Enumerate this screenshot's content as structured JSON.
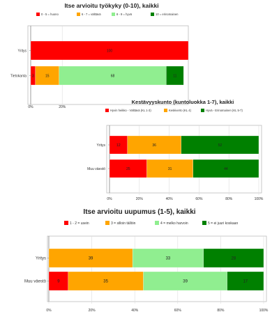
{
  "chart_data": [
    {
      "type": "bar",
      "orientation": "horizontal",
      "stacked": true,
      "title": "Itse arvioitu työkyky (0-10), kaikki",
      "categories": [
        "Yritys",
        "Tietokanta"
      ],
      "series": [
        {
          "name": "0 - 5 = huono",
          "color": "#ff0000",
          "values": [
            100,
            3
          ]
        },
        {
          "name": "6 - 7 = välttävä",
          "color": "#ffa500",
          "values": [
            0,
            15
          ]
        },
        {
          "name": "8 - 9 = hyvä",
          "color": "#90ee90",
          "values": [
            0,
            68
          ]
        },
        {
          "name": "10 = erinomainen",
          "color": "#008000",
          "values": [
            0,
            11
          ]
        }
      ],
      "data_labels": [
        [
          "100",
          "",
          "",
          ""
        ],
        [
          "3",
          "15",
          "68",
          "11"
        ]
      ],
      "x_ticks": [
        "0%",
        "20%"
      ],
      "xlim": [
        0,
        100
      ],
      "legend": "top"
    },
    {
      "type": "bar",
      "orientation": "horizontal",
      "stacked": true,
      "title": "Kestävyyskunto (kuntoluokka 1-7), kaikki",
      "categories": [
        "Yritys",
        "Muu väestö"
      ],
      "series": [
        {
          "name": "Hyvin heikko - Välttävä (KL 1-3)",
          "color": "#ff0000",
          "values": [
            12,
            25
          ]
        },
        {
          "name": "Keskiverto (KL 4)",
          "color": "#ffa500",
          "values": [
            36,
            31
          ]
        },
        {
          "name": "Hyvä - Erinomainen (KL 5-7)",
          "color": "#008000",
          "values": [
            52,
            44
          ]
        }
      ],
      "data_labels": [
        [
          "12",
          "36",
          "52"
        ],
        [
          "25",
          "31",
          "44"
        ]
      ],
      "x_ticks": [
        "0%",
        "20%",
        "40%",
        "60%",
        "80%",
        "100%"
      ],
      "xlim": [
        0,
        100
      ],
      "legend": "top"
    },
    {
      "type": "bar",
      "orientation": "horizontal",
      "stacked": true,
      "title": "Itse arvioitu uupumus (1-5), kaikki",
      "categories": [
        "Yritys",
        "Muu väestö"
      ],
      "series": [
        {
          "name": "1 - 2 = usein",
          "color": "#ff0000",
          "values": [
            0,
            9
          ]
        },
        {
          "name": "3 = silloin tällöin",
          "color": "#ffa500",
          "values": [
            39,
            35
          ]
        },
        {
          "name": "4 = melko harvoin",
          "color": "#90ee90",
          "values": [
            33,
            39
          ]
        },
        {
          "name": "5 = ei juuri koskaan",
          "color": "#008000",
          "values": [
            28,
            17
          ]
        }
      ],
      "data_labels": [
        [
          "",
          "39",
          "33",
          "28"
        ],
        [
          "9",
          "35",
          "39",
          "17"
        ]
      ],
      "x_ticks": [
        "0%",
        "20%",
        "40%",
        "60%",
        "80%",
        "100%"
      ],
      "xlim": [
        0,
        100
      ],
      "legend": "top"
    }
  ]
}
